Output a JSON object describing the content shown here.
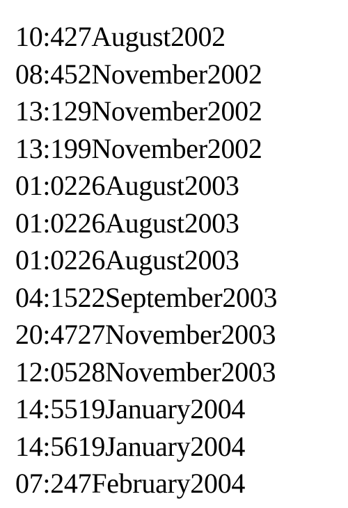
{
  "lines": [
    "10:427August2002",
    "08:452November2002",
    "13:129November2002",
    "13:199November2002",
    "01:0226August2003",
    "01:0226August2003",
    "01:0226August2003",
    "04:1522September2003",
    "20:4727November2003",
    "12:0528November2003",
    "14:5519January2004",
    "14:5619January2004",
    "07:247February2004"
  ]
}
